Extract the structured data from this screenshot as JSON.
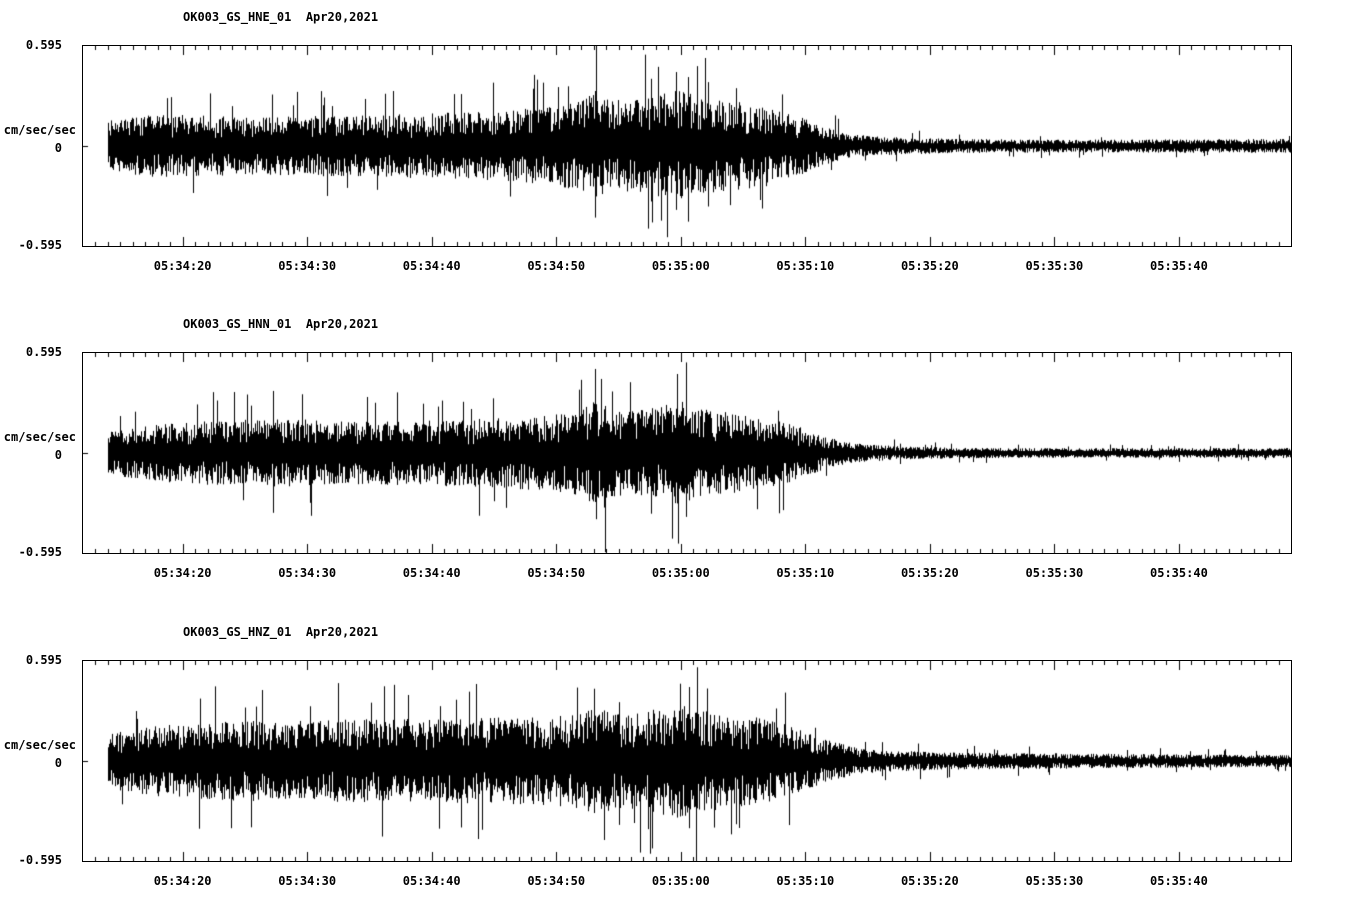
{
  "page": {
    "background": "#ffffff",
    "foreground": "#000000",
    "kind": "seismogram-record-display"
  },
  "chart_data": [
    {
      "type": "line",
      "kind": "seismogram-waveform",
      "title": "OK003_GS_HNE_01",
      "date": "Apr20,2021",
      "ylabel": "cm/sec/sec",
      "ylim": [
        -0.595,
        0.595
      ],
      "yticks": [
        0.595,
        0,
        -0.595
      ],
      "ytick_labels": [
        "0.595",
        "0",
        "-0.595"
      ],
      "x_range_seconds": [
        0,
        97
      ],
      "x_start_time": "05:34:12",
      "x_end_time": "05:35:49",
      "data_start_second": 2,
      "xtick_minor_interval_seconds": 1,
      "xtick_major_interval_seconds": 10,
      "xticks": [
        {
          "t": 8,
          "label": "05:34:20"
        },
        {
          "t": 18,
          "label": "05:34:30"
        },
        {
          "t": 28,
          "label": "05:34:40"
        },
        {
          "t": 38,
          "label": "05:34:50"
        },
        {
          "t": 48,
          "label": "05:35:00"
        },
        {
          "t": 58,
          "label": "05:35:10"
        },
        {
          "t": 68,
          "label": "05:35:20"
        },
        {
          "t": 78,
          "label": "05:35:30"
        },
        {
          "t": 88,
          "label": "05:35:40"
        }
      ],
      "grid": false,
      "legend": false,
      "line_color": "#000000",
      "envelope": [
        [
          2,
          0.15
        ],
        [
          6,
          0.19
        ],
        [
          10,
          0.18
        ],
        [
          14,
          0.17
        ],
        [
          18,
          0.18
        ],
        [
          22,
          0.18
        ],
        [
          26,
          0.19
        ],
        [
          30,
          0.2
        ],
        [
          34,
          0.21
        ],
        [
          38,
          0.24
        ],
        [
          40,
          0.27
        ],
        [
          41,
          0.32
        ],
        [
          42,
          0.28
        ],
        [
          44,
          0.27
        ],
        [
          46,
          0.3
        ],
        [
          48,
          0.34
        ],
        [
          49,
          0.3
        ],
        [
          51,
          0.27
        ],
        [
          53,
          0.26
        ],
        [
          55,
          0.24
        ],
        [
          57,
          0.19
        ],
        [
          59,
          0.13
        ],
        [
          61,
          0.08
        ],
        [
          63,
          0.06
        ],
        [
          66,
          0.05
        ],
        [
          70,
          0.042
        ],
        [
          80,
          0.038
        ],
        [
          97,
          0.042
        ]
      ],
      "spikes": [
        {
          "t": 41.2,
          "up": 0.595,
          "down": -0.3
        },
        {
          "t": 45.6,
          "up": 0.4,
          "down": -0.33
        },
        {
          "t": 47.6,
          "up": 0.44,
          "down": -0.38
        },
        {
          "t": 48.6,
          "up": 0.41,
          "down": -0.45
        },
        {
          "t": 50.2,
          "up": 0.38,
          "down": -0.36
        }
      ],
      "seed": 11
    },
    {
      "type": "line",
      "kind": "seismogram-waveform",
      "title": "OK003_GS_HNN_01",
      "date": "Apr20,2021",
      "ylabel": "cm/sec/sec",
      "ylim": [
        -0.595,
        0.595
      ],
      "yticks": [
        0.595,
        0,
        -0.595
      ],
      "ytick_labels": [
        "0.595",
        "0",
        "-0.595"
      ],
      "x_range_seconds": [
        0,
        97
      ],
      "x_start_time": "05:34:12",
      "x_end_time": "05:35:49",
      "data_start_second": 2,
      "xtick_minor_interval_seconds": 1,
      "xtick_major_interval_seconds": 10,
      "xticks": [
        {
          "t": 8,
          "label": "05:34:20"
        },
        {
          "t": 18,
          "label": "05:34:30"
        },
        {
          "t": 28,
          "label": "05:34:40"
        },
        {
          "t": 38,
          "label": "05:34:50"
        },
        {
          "t": 48,
          "label": "05:35:00"
        },
        {
          "t": 58,
          "label": "05:35:10"
        },
        {
          "t": 68,
          "label": "05:35:20"
        },
        {
          "t": 78,
          "label": "05:35:30"
        },
        {
          "t": 88,
          "label": "05:35:40"
        }
      ],
      "grid": false,
      "legend": false,
      "line_color": "#000000",
      "envelope": [
        [
          2,
          0.13
        ],
        [
          6,
          0.17
        ],
        [
          10,
          0.19
        ],
        [
          14,
          0.2
        ],
        [
          18,
          0.2
        ],
        [
          22,
          0.19
        ],
        [
          26,
          0.19
        ],
        [
          30,
          0.2
        ],
        [
          34,
          0.21
        ],
        [
          38,
          0.23
        ],
        [
          40,
          0.26
        ],
        [
          41,
          0.31
        ],
        [
          42,
          0.27
        ],
        [
          44,
          0.25
        ],
        [
          46,
          0.27
        ],
        [
          48,
          0.31
        ],
        [
          49,
          0.27
        ],
        [
          51,
          0.25
        ],
        [
          53,
          0.23
        ],
        [
          55,
          0.21
        ],
        [
          57,
          0.17
        ],
        [
          59,
          0.11
        ],
        [
          61,
          0.07
        ],
        [
          63,
          0.05
        ],
        [
          66,
          0.04
        ],
        [
          70,
          0.032
        ],
        [
          80,
          0.028
        ],
        [
          97,
          0.03
        ]
      ],
      "spikes": [
        {
          "t": 41.1,
          "up": 0.5,
          "down": -0.28
        },
        {
          "t": 41.9,
          "up": 0.28,
          "down": -0.59
        },
        {
          "t": 47.7,
          "up": 0.47,
          "down": -0.3
        },
        {
          "t": 48.4,
          "up": 0.4,
          "down": -0.38
        }
      ],
      "seed": 22
    },
    {
      "type": "line",
      "kind": "seismogram-waveform",
      "title": "OK003_GS_HNZ_01",
      "date": "Apr20,2021",
      "ylabel": "cm/sec/sec",
      "ylim": [
        -0.595,
        0.595
      ],
      "yticks": [
        0.595,
        0,
        -0.595
      ],
      "ytick_labels": [
        "0.595",
        "0",
        "-0.595"
      ],
      "x_range_seconds": [
        0,
        97
      ],
      "x_start_time": "05:34:12",
      "x_end_time": "05:35:49",
      "data_start_second": 2,
      "xtick_minor_interval_seconds": 1,
      "xtick_major_interval_seconds": 10,
      "xticks": [
        {
          "t": 8,
          "label": "05:34:20"
        },
        {
          "t": 18,
          "label": "05:34:30"
        },
        {
          "t": 28,
          "label": "05:34:40"
        },
        {
          "t": 38,
          "label": "05:34:50"
        },
        {
          "t": 48,
          "label": "05:35:00"
        },
        {
          "t": 58,
          "label": "05:35:10"
        },
        {
          "t": 68,
          "label": "05:35:20"
        },
        {
          "t": 78,
          "label": "05:35:30"
        },
        {
          "t": 88,
          "label": "05:35:40"
        }
      ],
      "grid": false,
      "legend": false,
      "line_color": "#000000",
      "envelope": [
        [
          2,
          0.17
        ],
        [
          6,
          0.21
        ],
        [
          10,
          0.23
        ],
        [
          14,
          0.24
        ],
        [
          18,
          0.24
        ],
        [
          22,
          0.25
        ],
        [
          26,
          0.25
        ],
        [
          30,
          0.25
        ],
        [
          34,
          0.26
        ],
        [
          38,
          0.27
        ],
        [
          40,
          0.29
        ],
        [
          41,
          0.32
        ],
        [
          43,
          0.28
        ],
        [
          45,
          0.29
        ],
        [
          47,
          0.33
        ],
        [
          48.5,
          0.35
        ],
        [
          50,
          0.3
        ],
        [
          52,
          0.28
        ],
        [
          54,
          0.26
        ],
        [
          56,
          0.23
        ],
        [
          58,
          0.17
        ],
        [
          60,
          0.12
        ],
        [
          62,
          0.08
        ],
        [
          64,
          0.065
        ],
        [
          68,
          0.055
        ],
        [
          75,
          0.048
        ],
        [
          85,
          0.042
        ],
        [
          97,
          0.036
        ]
      ],
      "spikes": [
        {
          "t": 41.0,
          "up": 0.43,
          "down": -0.28
        },
        {
          "t": 41.8,
          "up": 0.3,
          "down": -0.47
        },
        {
          "t": 43.0,
          "up": 0.35,
          "down": -0.38
        },
        {
          "t": 47.9,
          "up": 0.46,
          "down": -0.33
        },
        {
          "t": 48.7,
          "up": 0.44,
          "down": -0.4
        }
      ],
      "seed": 33
    }
  ]
}
